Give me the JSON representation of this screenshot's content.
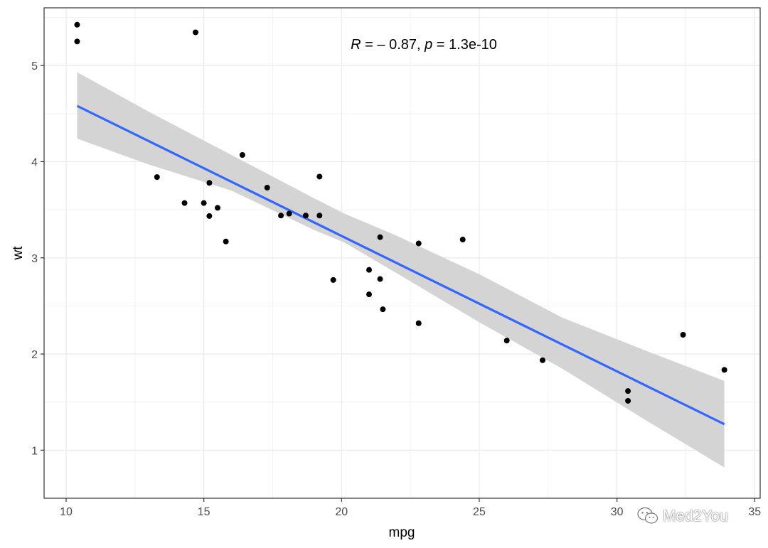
{
  "chart_data": {
    "type": "scatter",
    "xlabel": "mpg",
    "ylabel": "wt",
    "xlim": [
      9.2,
      35.2
    ],
    "ylim": [
      0.5,
      5.6
    ],
    "x_ticks": [
      10,
      15,
      20,
      25,
      30,
      35
    ],
    "y_ticks": [
      1,
      2,
      3,
      4,
      5
    ],
    "grid": true,
    "annotation": {
      "r_symbol": "R",
      "r_text": " = – 0.87, ",
      "p_symbol": "p",
      "p_text": " = 1.3e-10"
    },
    "points": [
      {
        "x": 21.0,
        "y": 2.62
      },
      {
        "x": 21.0,
        "y": 2.875
      },
      {
        "x": 22.8,
        "y": 2.32
      },
      {
        "x": 21.4,
        "y": 3.215
      },
      {
        "x": 18.7,
        "y": 3.44
      },
      {
        "x": 18.1,
        "y": 3.46
      },
      {
        "x": 14.3,
        "y": 3.57
      },
      {
        "x": 24.4,
        "y": 3.19
      },
      {
        "x": 22.8,
        "y": 3.15
      },
      {
        "x": 19.2,
        "y": 3.44
      },
      {
        "x": 17.8,
        "y": 3.44
      },
      {
        "x": 16.4,
        "y": 4.07
      },
      {
        "x": 17.3,
        "y": 3.73
      },
      {
        "x": 15.2,
        "y": 3.78
      },
      {
        "x": 10.4,
        "y": 5.25
      },
      {
        "x": 10.4,
        "y": 5.424
      },
      {
        "x": 14.7,
        "y": 5.345
      },
      {
        "x": 32.4,
        "y": 2.2
      },
      {
        "x": 30.4,
        "y": 1.615
      },
      {
        "x": 33.9,
        "y": 1.835
      },
      {
        "x": 21.5,
        "y": 2.465
      },
      {
        "x": 15.5,
        "y": 3.52
      },
      {
        "x": 15.2,
        "y": 3.435
      },
      {
        "x": 13.3,
        "y": 3.84
      },
      {
        "x": 19.2,
        "y": 3.845
      },
      {
        "x": 27.3,
        "y": 1.935
      },
      {
        "x": 26.0,
        "y": 2.14
      },
      {
        "x": 30.4,
        "y": 1.513
      },
      {
        "x": 15.8,
        "y": 3.17
      },
      {
        "x": 19.7,
        "y": 2.77
      },
      {
        "x": 15.0,
        "y": 3.57
      },
      {
        "x": 21.4,
        "y": 2.78
      }
    ],
    "fit": {
      "method": "lm",
      "line": [
        {
          "x": 10.4,
          "y": 4.58
        },
        {
          "x": 33.9,
          "y": 1.27
        }
      ],
      "ci_upper": [
        {
          "x": 10.4,
          "y": 4.93
        },
        {
          "x": 13.0,
          "y": 4.52
        },
        {
          "x": 16.0,
          "y": 4.07
        },
        {
          "x": 19.0,
          "y": 3.62
        },
        {
          "x": 20.1,
          "y": 3.46
        },
        {
          "x": 22.0,
          "y": 3.23
        },
        {
          "x": 25.0,
          "y": 2.83
        },
        {
          "x": 28.0,
          "y": 2.38
        },
        {
          "x": 31.0,
          "y": 2.04
        },
        {
          "x": 33.9,
          "y": 1.72
        }
      ],
      "ci_lower": [
        {
          "x": 33.9,
          "y": 0.82
        },
        {
          "x": 31.0,
          "y": 1.32
        },
        {
          "x": 28.0,
          "y": 1.85
        },
        {
          "x": 25.0,
          "y": 2.33
        },
        {
          "x": 22.0,
          "y": 2.84
        },
        {
          "x": 20.1,
          "y": 3.16
        },
        {
          "x": 19.0,
          "y": 3.29
        },
        {
          "x": 16.0,
          "y": 3.7
        },
        {
          "x": 13.0,
          "y": 3.97
        },
        {
          "x": 10.4,
          "y": 4.24
        }
      ],
      "line_color": "#3366FF",
      "band_color": "#D4D4D4"
    },
    "point_color": "#000000"
  },
  "watermark": {
    "icon": "wechat-icon",
    "text": "Med2You"
  }
}
